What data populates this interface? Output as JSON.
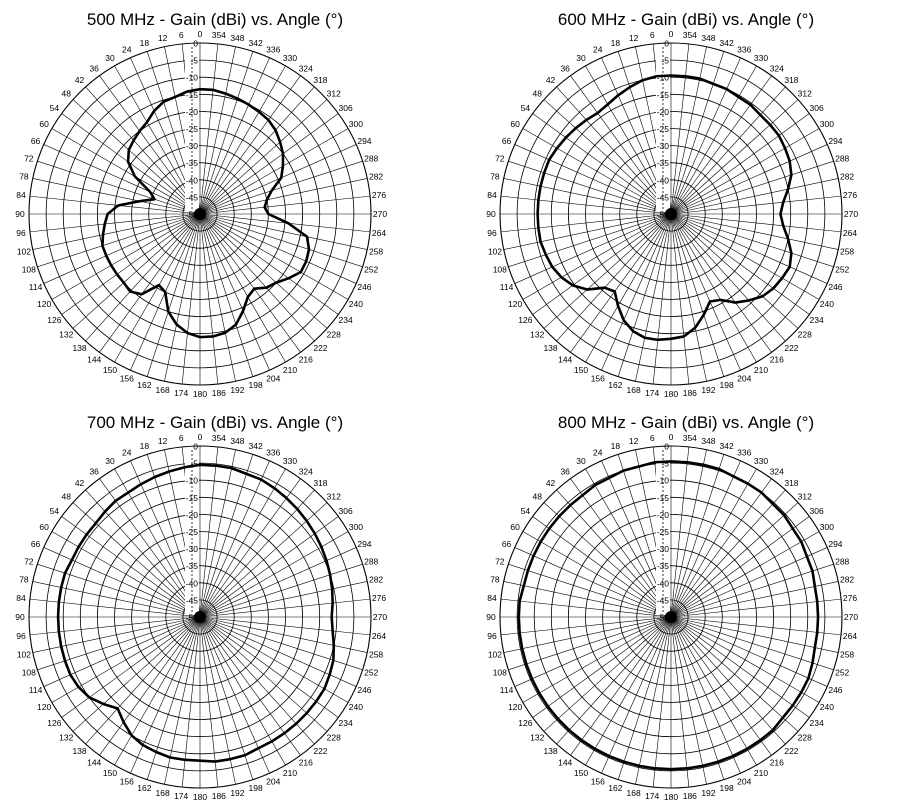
{
  "chart_data": [
    {
      "type": "polar-line",
      "title": "500 MHz - Gain (dBi) vs. Angle (°)",
      "angle_labels": [
        "0",
        "6",
        "12",
        "18",
        "24",
        "30",
        "36",
        "42",
        "48",
        "54",
        "60",
        "66",
        "72",
        "78",
        "84",
        "90",
        "96",
        "102",
        "108",
        "114",
        "120",
        "126",
        "132",
        "138",
        "144",
        "150",
        "156",
        "162",
        "168",
        "174",
        "180",
        "186",
        "192",
        "198",
        "204",
        "210",
        "216",
        "222",
        "228",
        "234",
        "240",
        "246",
        "252",
        "258",
        "264",
        "270",
        "276",
        "282",
        "288",
        "294",
        "300",
        "306",
        "312",
        "318",
        "324",
        "330",
        "336",
        "342",
        "348",
        "354"
      ],
      "radial_labels": [
        "0",
        "-5",
        "-10",
        "-15",
        "-20",
        "-25",
        "-30",
        "-35",
        "-40",
        "-45",
        "-50"
      ],
      "rlim": [
        -50,
        0
      ],
      "angle_direction": "counterclockwise",
      "angle_zero": "top",
      "grid": true,
      "series": [
        {
          "color": "#000000",
          "angles": [
            0,
            6,
            12,
            18,
            24,
            30,
            36,
            42,
            48,
            54,
            60,
            66,
            72,
            78,
            84,
            90,
            96,
            102,
            108,
            114,
            120,
            126,
            132,
            138,
            144,
            150,
            156,
            162,
            168,
            174,
            180,
            186,
            192,
            198,
            204,
            210,
            216,
            222,
            228,
            234,
            240,
            246,
            252,
            258,
            264,
            270,
            276,
            282,
            288,
            294,
            300,
            306,
            312,
            318,
            324,
            330,
            336,
            342,
            348,
            354
          ],
          "values": [
            -13.5,
            -14,
            -15,
            -15.5,
            -17,
            -19,
            -20,
            -21,
            -22,
            -24,
            -28,
            -34,
            -36,
            -32,
            -26,
            -23,
            -22,
            -21,
            -20,
            -20,
            -20,
            -20,
            -20,
            -19.5,
            -21,
            -26,
            -25,
            -20,
            -17,
            -15,
            -14,
            -14,
            -14.5,
            -16,
            -19,
            -22,
            -23,
            -21,
            -20,
            -18,
            -16,
            -16,
            -16.5,
            -18,
            -24,
            -30,
            -31,
            -30,
            -28,
            -24,
            -22,
            -20,
            -18.5,
            -17,
            -16,
            -15.5,
            -15,
            -14.5,
            -14,
            -13.5
          ]
        }
      ]
    },
    {
      "type": "polar-line",
      "title": "600 MHz - Gain (dBi) vs. Angle (°)",
      "angle_labels": [
        "0",
        "6",
        "12",
        "18",
        "24",
        "30",
        "36",
        "42",
        "48",
        "54",
        "60",
        "66",
        "72",
        "78",
        "84",
        "90",
        "96",
        "102",
        "108",
        "114",
        "120",
        "126",
        "132",
        "138",
        "144",
        "150",
        "156",
        "162",
        "168",
        "174",
        "180",
        "186",
        "192",
        "198",
        "204",
        "210",
        "216",
        "222",
        "228",
        "234",
        "240",
        "246",
        "252",
        "258",
        "264",
        "270",
        "276",
        "282",
        "288",
        "294",
        "300",
        "306",
        "312",
        "318",
        "324",
        "330",
        "336",
        "342",
        "348",
        "354"
      ],
      "radial_labels": [
        "0",
        "-5",
        "-10",
        "-15",
        "-20",
        "-25",
        "-30",
        "-35",
        "-40",
        "-45",
        "-50"
      ],
      "rlim": [
        -50,
        0
      ],
      "angle_direction": "counterclockwise",
      "angle_zero": "top",
      "grid": true,
      "series": [
        {
          "color": "#000000",
          "angles": [
            0,
            6,
            12,
            18,
            24,
            30,
            36,
            42,
            48,
            54,
            60,
            66,
            72,
            78,
            84,
            90,
            96,
            102,
            108,
            114,
            120,
            126,
            132,
            138,
            144,
            150,
            156,
            162,
            168,
            174,
            180,
            186,
            192,
            198,
            204,
            210,
            216,
            222,
            228,
            234,
            240,
            246,
            252,
            258,
            264,
            270,
            276,
            282,
            288,
            294,
            300,
            306,
            312,
            318,
            324,
            330,
            336,
            342,
            348,
            354
          ],
          "values": [
            -9.5,
            -9.5,
            -10,
            -11,
            -12,
            -13,
            -13.5,
            -13,
            -12.5,
            -12,
            -11.5,
            -11,
            -11,
            -11,
            -11,
            -11,
            -11,
            -11,
            -11.5,
            -12,
            -13,
            -14.5,
            -17,
            -21,
            -22,
            -19,
            -16,
            -14,
            -13,
            -13,
            -13.5,
            -14,
            -16,
            -19,
            -22,
            -21,
            -18,
            -16,
            -14,
            -13,
            -12.5,
            -12,
            -13,
            -15,
            -17,
            -18,
            -17,
            -15,
            -13,
            -12,
            -11.5,
            -11,
            -11,
            -11,
            -10.5,
            -10.5,
            -10,
            -10,
            -9.5,
            -9.5
          ]
        }
      ]
    },
    {
      "type": "polar-line",
      "title": "700 MHz - Gain (dBi) vs. Angle (°)",
      "angle_labels": [
        "0",
        "6",
        "12",
        "18",
        "24",
        "30",
        "36",
        "42",
        "48",
        "54",
        "60",
        "66",
        "72",
        "78",
        "84",
        "90",
        "96",
        "102",
        "108",
        "114",
        "120",
        "126",
        "132",
        "138",
        "144",
        "150",
        "156",
        "162",
        "168",
        "174",
        "180",
        "186",
        "192",
        "198",
        "204",
        "210",
        "216",
        "222",
        "228",
        "234",
        "240",
        "246",
        "252",
        "258",
        "264",
        "270",
        "276",
        "282",
        "288",
        "294",
        "300",
        "306",
        "312",
        "318",
        "324",
        "330",
        "336",
        "342",
        "348",
        "354"
      ],
      "radial_labels": [
        "0",
        "-5",
        "-10",
        "-15",
        "-20",
        "-25",
        "-30",
        "-35",
        "-40",
        "-45",
        "-50"
      ],
      "rlim": [
        -50,
        0
      ],
      "angle_direction": "counterclockwise",
      "angle_zero": "top",
      "grid": true,
      "series": [
        {
          "color": "#000000",
          "angles": [
            0,
            6,
            12,
            18,
            24,
            30,
            36,
            42,
            48,
            54,
            60,
            66,
            72,
            78,
            84,
            90,
            96,
            102,
            108,
            114,
            120,
            126,
            132,
            138,
            144,
            150,
            156,
            162,
            168,
            174,
            180,
            186,
            192,
            198,
            204,
            210,
            216,
            222,
            228,
            234,
            240,
            246,
            252,
            258,
            264,
            270,
            276,
            282,
            288,
            294,
            300,
            306,
            312,
            318,
            324,
            330,
            336,
            342,
            348,
            354
          ],
          "values": [
            -5.5,
            -6,
            -6.5,
            -7,
            -7.5,
            -8,
            -8,
            -8.5,
            -9,
            -9,
            -9,
            -9,
            -8.5,
            -8.5,
            -8.5,
            -8.5,
            -8.5,
            -8.5,
            -8.5,
            -8.5,
            -9,
            -10,
            -12,
            -14,
            -12,
            -10,
            -9,
            -8.5,
            -8,
            -8,
            -8,
            -7.5,
            -7.5,
            -7.5,
            -8,
            -8,
            -8,
            -8,
            -8,
            -8,
            -8,
            -8.5,
            -9,
            -10,
            -11,
            -11.5,
            -11,
            -10.5,
            -10,
            -9.5,
            -9,
            -8.5,
            -8,
            -7.5,
            -7,
            -6.5,
            -6,
            -6,
            -5.5,
            -5.5
          ]
        }
      ]
    },
    {
      "type": "polar-line",
      "title": "800 MHz - Gain (dBi) vs. Angle (°)",
      "angle_labels": [
        "0",
        "6",
        "12",
        "18",
        "24",
        "30",
        "36",
        "42",
        "48",
        "54",
        "60",
        "66",
        "72",
        "78",
        "84",
        "90",
        "96",
        "102",
        "108",
        "114",
        "120",
        "126",
        "132",
        "138",
        "144",
        "150",
        "156",
        "162",
        "168",
        "174",
        "180",
        "186",
        "192",
        "198",
        "204",
        "210",
        "216",
        "222",
        "228",
        "234",
        "240",
        "246",
        "252",
        "258",
        "264",
        "270",
        "276",
        "282",
        "288",
        "294",
        "300",
        "306",
        "312",
        "318",
        "324",
        "330",
        "336",
        "342",
        "348",
        "354"
      ],
      "radial_labels": [
        "0",
        "-5",
        "-10",
        "-15",
        "-20",
        "-25",
        "-30",
        "-35",
        "-40",
        "-45",
        "-50"
      ],
      "rlim": [
        -50,
        0
      ],
      "angle_direction": "counterclockwise",
      "angle_zero": "top",
      "grid": true,
      "series": [
        {
          "color": "#000000",
          "angles": [
            0,
            6,
            12,
            18,
            24,
            30,
            36,
            42,
            48,
            54,
            60,
            66,
            72,
            78,
            84,
            90,
            96,
            102,
            108,
            114,
            120,
            126,
            132,
            138,
            144,
            150,
            156,
            162,
            168,
            174,
            180,
            186,
            192,
            198,
            204,
            210,
            216,
            222,
            228,
            234,
            240,
            246,
            252,
            258,
            264,
            270,
            276,
            282,
            288,
            294,
            300,
            306,
            312,
            318,
            324,
            330,
            336,
            342,
            348,
            354
          ],
          "values": [
            -4.5,
            -4.5,
            -5,
            -5,
            -5.5,
            -5.5,
            -6,
            -6,
            -6,
            -6,
            -6,
            -6,
            -6,
            -6,
            -5.5,
            -5.5,
            -5.5,
            -5.5,
            -5.5,
            -5.5,
            -5.5,
            -5.5,
            -5.5,
            -5.5,
            -5.5,
            -5.5,
            -5.5,
            -5.5,
            -5.5,
            -5.5,
            -5.5,
            -5.5,
            -5.5,
            -5.5,
            -5.5,
            -5.5,
            -5.5,
            -5.5,
            -6,
            -6,
            -6,
            -6,
            -6.5,
            -7,
            -7,
            -7,
            -7,
            -7,
            -6.5,
            -6.5,
            -6,
            -6,
            -5.5,
            -5.5,
            -5,
            -5,
            -5,
            -4.5,
            -4.5,
            -4.5
          ]
        }
      ]
    }
  ]
}
